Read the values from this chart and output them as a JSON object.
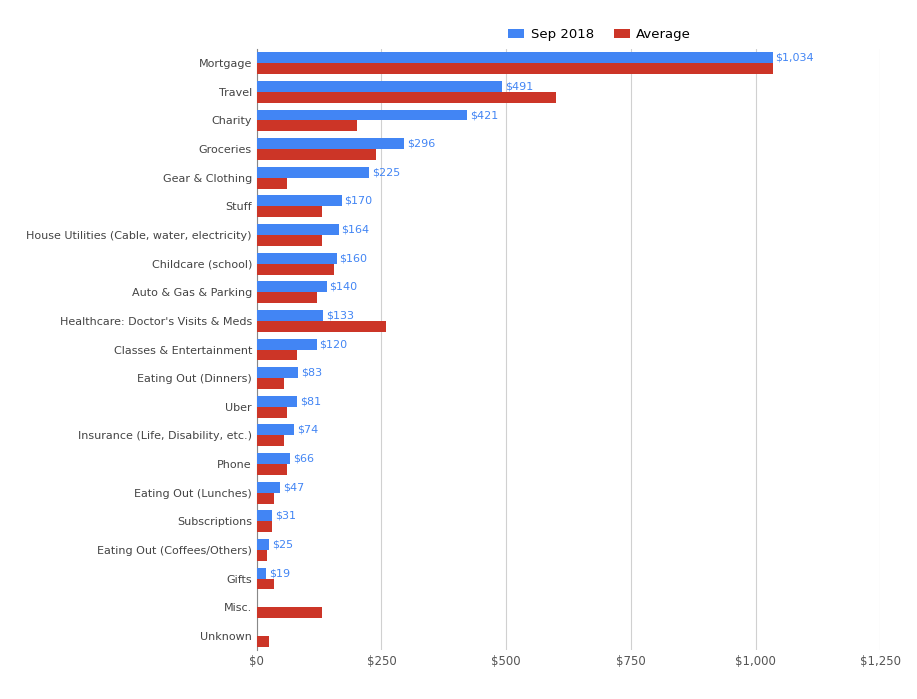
{
  "categories": [
    "Mortgage",
    "Travel",
    "Charity",
    "Groceries",
    "Gear & Clothing",
    "Stuff",
    "House Utilities (Cable, water, electricity)",
    "Childcare (school)",
    "Auto & Gas & Parking",
    "Healthcare: Doctor's Visits & Meds",
    "Classes & Entertainment",
    "Eating Out (Dinners)",
    "Uber",
    "Insurance (Life, Disability, etc.)",
    "Phone",
    "Eating Out (Lunches)",
    "Subscriptions",
    "Eating Out (Coffees/Others)",
    "Gifts",
    "Misc.",
    "Unknown"
  ],
  "sep2018": [
    1034,
    491,
    421,
    296,
    225,
    170,
    164,
    160,
    140,
    133,
    120,
    83,
    81,
    74,
    66,
    47,
    31,
    25,
    19,
    0,
    0
  ],
  "average": [
    1034,
    600,
    200,
    240,
    60,
    130,
    130,
    155,
    120,
    260,
    80,
    55,
    60,
    55,
    60,
    35,
    30,
    20,
    35,
    130,
    25
  ],
  "sep2018_labels": [
    "$1,034",
    "$491",
    "$421",
    "$296",
    "$225",
    "$170",
    "$164",
    "$160",
    "$140",
    "$133",
    "$120",
    "$83",
    "$81",
    "$74",
    "$66",
    "$47",
    "$31",
    "$25",
    "$19",
    "",
    ""
  ],
  "blue_color": "#4285F4",
  "red_color": "#CC3527",
  "grid_color": "#d0d0d0",
  "bg_color": "#ffffff",
  "legend_blue": "Sep 2018",
  "legend_red": "Average",
  "xlim": [
    0,
    1250
  ],
  "xticks": [
    0,
    250,
    500,
    750,
    1000,
    1250
  ],
  "xtick_labels": [
    "$0",
    "$250",
    "$500",
    "$750",
    "$1,000",
    "$1,250"
  ],
  "fig_width": 9.17,
  "fig_height": 6.99,
  "dpi": 100
}
